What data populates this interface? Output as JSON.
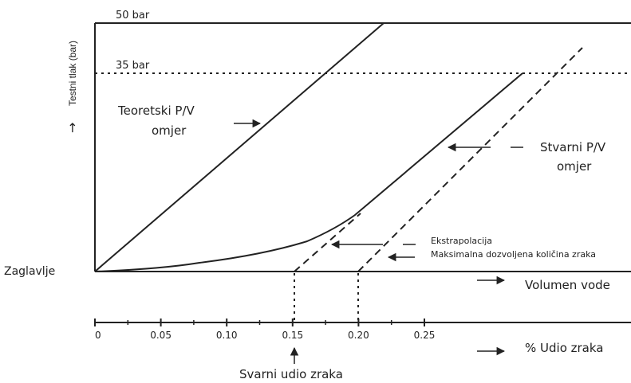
{
  "diagram": {
    "y_axis_label": "Testni tlak  (bar)",
    "y_axis_arrow": "→",
    "line_50_label": "50 bar",
    "line_35_label": "35 bar",
    "theoretical": {
      "line1": "Teoretski P/V",
      "line2": "omjer"
    },
    "actual": {
      "line1": "Stvarni P/V",
      "line2": "omjer"
    },
    "extrapolation_label": "Ekstrapolacija",
    "max_air_label": "Maksimalna dozvoljena količina zraka",
    "origin_label": "Zaglavlje",
    "volume_axis_label": "Volumen vode",
    "air_axis": {
      "label": "% Udio zraka",
      "ticks": [
        "0",
        "0.05",
        "0.10",
        "0.15",
        "0.20",
        "0.25"
      ]
    },
    "actual_air_label": "Svarni udio zraka"
  }
}
